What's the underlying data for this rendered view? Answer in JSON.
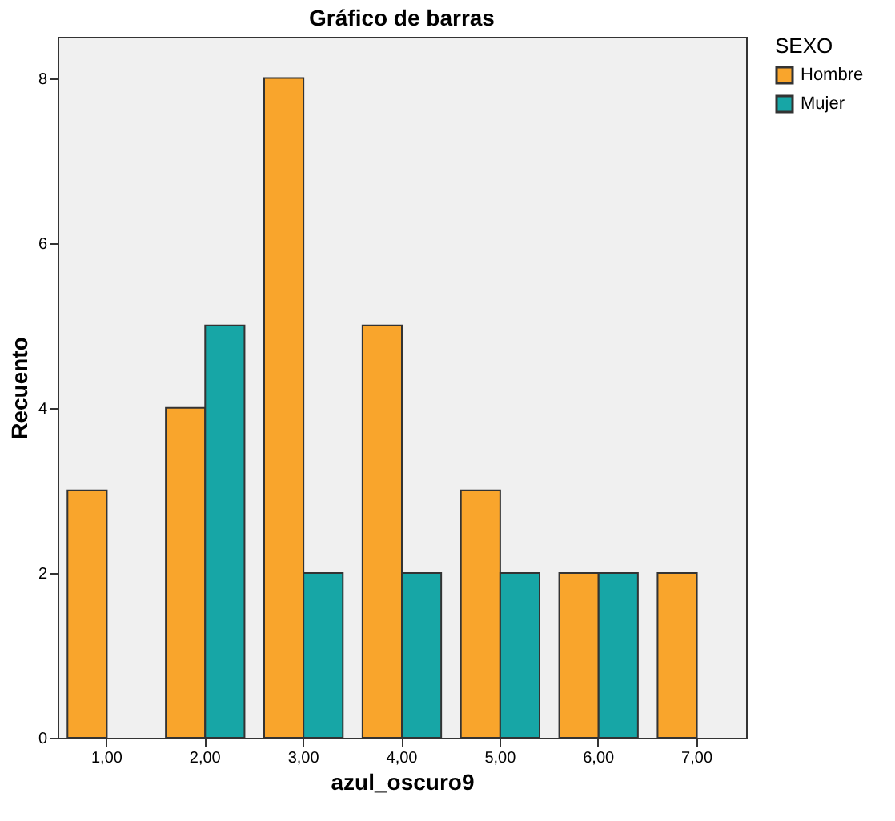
{
  "chart_data": {
    "type": "bar",
    "title": "Gráfico de barras",
    "xlabel": "azul_oscuro9",
    "ylabel": "Recuento",
    "legend_title": "SEXO",
    "categories": [
      "1,00",
      "2,00",
      "3,00",
      "4,00",
      "5,00",
      "6,00",
      "7,00"
    ],
    "series": [
      {
        "name": "Hombre",
        "color": "#f9a52c",
        "values": [
          3,
          4,
          8,
          5,
          3,
          2,
          2
        ]
      },
      {
        "name": "Mujer",
        "color": "#17a6a6",
        "values": [
          null,
          5,
          2,
          2,
          2,
          2,
          null
        ]
      }
    ],
    "ylim": [
      0,
      8.5
    ],
    "yticks": [
      0,
      2,
      4,
      6,
      8
    ],
    "grid": false,
    "legend": "top right"
  }
}
